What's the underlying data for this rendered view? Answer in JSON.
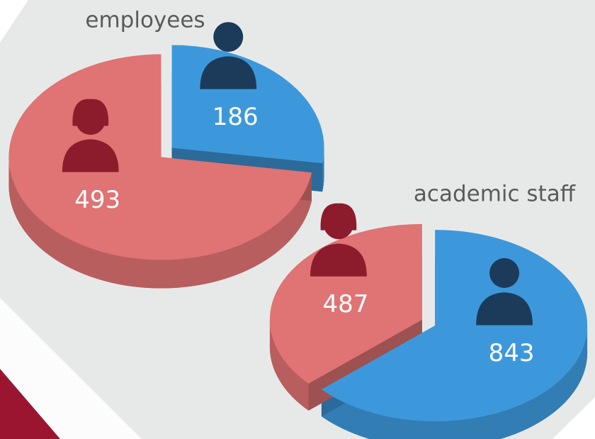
{
  "chart_data": [
    {
      "type": "pie",
      "title": "employees",
      "values": [
        186,
        493
      ],
      "colors": [
        "#3d98db",
        "#e07373"
      ]
    },
    {
      "type": "pie",
      "title": "academic staff",
      "values": [
        843,
        487
      ],
      "colors": [
        "#3d98db",
        "#e07373"
      ]
    }
  ]
}
